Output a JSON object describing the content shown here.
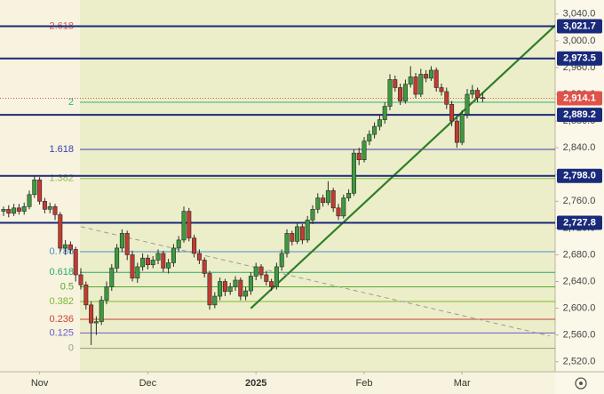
{
  "chart_data": {
    "type": "candlestick",
    "ylim": [
      2505,
      3061
    ],
    "yticks": [
      {
        "value": 3040,
        "label": "3,040.0"
      },
      {
        "value": 3000,
        "label": "3,000.0"
      },
      {
        "value": 2960,
        "label": "2,960.0"
      },
      {
        "value": 2920,
        "label": "2,920.0"
      },
      {
        "value": 2880,
        "label": "2,880.0"
      },
      {
        "value": 2840,
        "label": "2,840.0"
      },
      {
        "value": 2800,
        "label": "2,800.0"
      },
      {
        "value": 2760,
        "label": "2,760.0"
      },
      {
        "value": 2720,
        "label": "2,720.0"
      },
      {
        "value": 2680,
        "label": "2,680.0"
      },
      {
        "value": 2640,
        "label": "2,640.0"
      },
      {
        "value": 2600,
        "label": "2,600.0"
      },
      {
        "value": 2560,
        "label": "2,560.0"
      },
      {
        "value": 2520,
        "label": "2,520.0"
      }
    ],
    "xticks": [
      {
        "value": 7,
        "label": "Nov"
      },
      {
        "value": 28,
        "label": "Dec"
      },
      {
        "value": 49,
        "label": "2025"
      },
      {
        "value": 70,
        "label": "Feb"
      },
      {
        "value": 89,
        "label": "Mar"
      }
    ],
    "up_color": "#3d9a3d",
    "down_color": "#c23b30",
    "ohlc": [
      [
        2745,
        2752,
        2738,
        2748
      ],
      [
        2748,
        2754,
        2736,
        2742
      ],
      [
        2742,
        2756,
        2738,
        2750
      ],
      [
        2750,
        2756,
        2740,
        2745
      ],
      [
        2745,
        2758,
        2740,
        2752
      ],
      [
        2752,
        2776,
        2748,
        2770
      ],
      [
        2770,
        2798,
        2765,
        2792
      ],
      [
        2792,
        2796,
        2755,
        2760
      ],
      [
        2760,
        2765,
        2742,
        2748
      ],
      [
        2748,
        2758,
        2742,
        2752
      ],
      [
        2752,
        2756,
        2732,
        2740
      ],
      [
        2740,
        2744,
        2684,
        2690
      ],
      [
        2690,
        2702,
        2680,
        2695
      ],
      [
        2695,
        2700,
        2682,
        2688
      ],
      [
        2688,
        2692,
        2640,
        2650
      ],
      [
        2650,
        2660,
        2628,
        2635
      ],
      [
        2635,
        2640,
        2598,
        2605
      ],
      [
        2605,
        2610,
        2545,
        2578
      ],
      [
        2578,
        2588,
        2560,
        2580
      ],
      [
        2580,
        2618,
        2575,
        2612
      ],
      [
        2612,
        2640,
        2606,
        2632
      ],
      [
        2632,
        2666,
        2626,
        2660
      ],
      [
        2660,
        2696,
        2654,
        2690
      ],
      [
        2690,
        2718,
        2684,
        2712
      ],
      [
        2712,
        2716,
        2672,
        2680
      ],
      [
        2680,
        2686,
        2640,
        2645
      ],
      [
        2645,
        2668,
        2638,
        2662
      ],
      [
        2662,
        2682,
        2656,
        2675
      ],
      [
        2675,
        2680,
        2658,
        2665
      ],
      [
        2665,
        2678,
        2660,
        2672
      ],
      [
        2672,
        2688,
        2666,
        2682
      ],
      [
        2682,
        2686,
        2654,
        2660
      ],
      [
        2660,
        2674,
        2652,
        2668
      ],
      [
        2668,
        2696,
        2662,
        2690
      ],
      [
        2690,
        2708,
        2684,
        2702
      ],
      [
        2702,
        2752,
        2698,
        2745
      ],
      [
        2745,
        2750,
        2700,
        2705
      ],
      [
        2705,
        2710,
        2676,
        2682
      ],
      [
        2682,
        2688,
        2666,
        2672
      ],
      [
        2672,
        2676,
        2646,
        2652
      ],
      [
        2652,
        2656,
        2598,
        2605
      ],
      [
        2605,
        2624,
        2600,
        2618
      ],
      [
        2618,
        2646,
        2612,
        2640
      ],
      [
        2640,
        2644,
        2618,
        2625
      ],
      [
        2625,
        2638,
        2620,
        2632
      ],
      [
        2632,
        2648,
        2626,
        2642
      ],
      [
        2642,
        2646,
        2612,
        2618
      ],
      [
        2618,
        2632,
        2612,
        2626
      ],
      [
        2626,
        2654,
        2620,
        2648
      ],
      [
        2648,
        2668,
        2642,
        2662
      ],
      [
        2662,
        2666,
        2644,
        2650
      ],
      [
        2650,
        2656,
        2634,
        2640
      ],
      [
        2640,
        2644,
        2626,
        2632
      ],
      [
        2632,
        2668,
        2628,
        2662
      ],
      [
        2662,
        2688,
        2656,
        2682
      ],
      [
        2682,
        2718,
        2676,
        2712
      ],
      [
        2712,
        2716,
        2694,
        2700
      ],
      [
        2700,
        2728,
        2696,
        2722
      ],
      [
        2722,
        2726,
        2696,
        2702
      ],
      [
        2702,
        2738,
        2698,
        2732
      ],
      [
        2732,
        2754,
        2726,
        2748
      ],
      [
        2748,
        2772,
        2742,
        2765
      ],
      [
        2765,
        2770,
        2752,
        2758
      ],
      [
        2758,
        2790,
        2754,
        2776
      ],
      [
        2776,
        2780,
        2744,
        2750
      ],
      [
        2750,
        2756,
        2732,
        2738
      ],
      [
        2738,
        2770,
        2734,
        2765
      ],
      [
        2765,
        2778,
        2760,
        2772
      ],
      [
        2772,
        2838,
        2768,
        2832
      ],
      [
        2832,
        2840,
        2814,
        2822
      ],
      [
        2822,
        2856,
        2818,
        2850
      ],
      [
        2850,
        2866,
        2844,
        2860
      ],
      [
        2860,
        2878,
        2854,
        2872
      ],
      [
        2872,
        2888,
        2866,
        2882
      ],
      [
        2882,
        2908,
        2876,
        2902
      ],
      [
        2902,
        2950,
        2896,
        2942
      ],
      [
        2942,
        2948,
        2924,
        2930
      ],
      [
        2930,
        2936,
        2904,
        2910
      ],
      [
        2910,
        2942,
        2906,
        2935
      ],
      [
        2935,
        2962,
        2930,
        2946
      ],
      [
        2946,
        2952,
        2914,
        2920
      ],
      [
        2920,
        2958,
        2916,
        2950
      ],
      [
        2950,
        2956,
        2938,
        2944
      ],
      [
        2944,
        2962,
        2940,
        2956
      ],
      [
        2956,
        2960,
        2924,
        2930
      ],
      [
        2930,
        2936,
        2918,
        2924
      ],
      [
        2924,
        2930,
        2898,
        2905
      ],
      [
        2905,
        2910,
        2872,
        2880
      ],
      [
        2880,
        2886,
        2840,
        2848
      ],
      [
        2848,
        2896,
        2844,
        2890
      ],
      [
        2890,
        2928,
        2884,
        2920
      ],
      [
        2920,
        2934,
        2914,
        2926
      ],
      [
        2926,
        2930,
        2908,
        2915
      ],
      [
        2915,
        2922,
        2908,
        2914.1
      ]
    ],
    "price_levels": [
      {
        "value": 3021.7,
        "label": "3,021.7"
      },
      {
        "value": 2973.5,
        "label": "2,973.5"
      },
      {
        "value": 2889.2,
        "label": "2,889.2"
      },
      {
        "value": 2798.0,
        "label": "2,798.0"
      },
      {
        "value": 2727.8,
        "label": "2,727.8"
      }
    ],
    "level_color": "#1a2a7a",
    "last_price": {
      "value": 2914.1,
      "label": "2,914.1"
    },
    "last_color": "#e0524a",
    "fib_levels": [
      {
        "ratio": 2.618,
        "price": 3021.7,
        "color": "#d0545a"
      },
      {
        "ratio": 2,
        "price": 2908,
        "color": "#36b37e"
      },
      {
        "ratio": 1.618,
        "price": 2837.6,
        "color": "#3b3bb0"
      },
      {
        "ratio": 1.382,
        "price": 2794,
        "color": "#8cc04a"
      },
      {
        "ratio": 0.786,
        "price": 2684.6,
        "color": "#4a8fd0"
      },
      {
        "ratio": 0.618,
        "price": 2653.7,
        "color": "#2aa868"
      },
      {
        "ratio": 0.5,
        "price": 2632,
        "color": "#52a830"
      },
      {
        "ratio": 0.382,
        "price": 2610,
        "color": "#7cb830"
      },
      {
        "ratio": 0.236,
        "price": 2583.4,
        "color": "#c8423a"
      },
      {
        "ratio": 0.125,
        "price": 2563,
        "color": "#6a5ad0"
      },
      {
        "ratio": 0,
        "price": 2540,
        "color": "#9a9a8a"
      }
    ],
    "trend_lines": [
      {
        "from": [
          48,
          2599.8
        ],
        "to": [
          112,
          3058
        ],
        "color": "#2f7d2a",
        "dashed": false
      },
      {
        "from": [
          15,
          2722
        ],
        "to": [
          106,
          2558.6
        ],
        "color": "#9a9a9a",
        "dashed": true
      }
    ]
  }
}
